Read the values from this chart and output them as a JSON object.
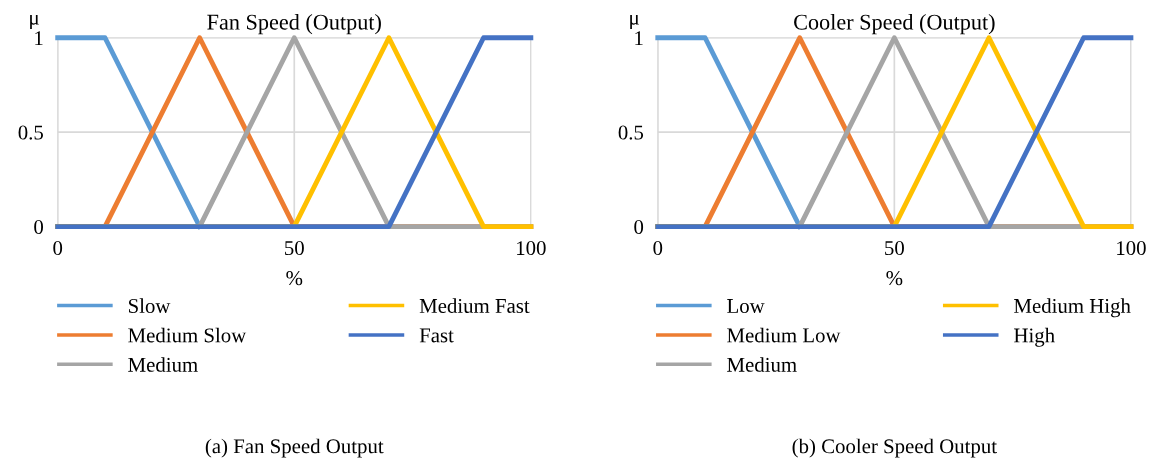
{
  "chart_data": [
    {
      "type": "line",
      "title": "Fan Speed (Output)",
      "xlabel": "%",
      "ylabel": "μ",
      "xlim": [
        0,
        100
      ],
      "xticks": [
        0,
        50,
        100
      ],
      "ylim": [
        0,
        1
      ],
      "yticks": [
        0,
        0.5,
        1
      ],
      "grid": true,
      "legend": "bottom",
      "marker": "none",
      "line_style": "solid",
      "annotations": [
        "(a) Fan Speed Output"
      ],
      "series": [
        {
          "name": "Slow",
          "color": "#5b9bd5",
          "x": [
            0,
            10,
            30
          ],
          "values": [
            1,
            1,
            0
          ]
        },
        {
          "name": "Medium Slow",
          "color": "#ed7d31",
          "x": [
            0,
            10,
            30,
            50,
            100
          ],
          "values": [
            0,
            0,
            1,
            0,
            0
          ]
        },
        {
          "name": "Medium",
          "color": "#a5a5a5",
          "x": [
            0,
            30,
            50,
            70,
            100
          ],
          "values": [
            0,
            0,
            1,
            0,
            0
          ]
        },
        {
          "name": "Medium Fast",
          "color": "#ffc000",
          "x": [
            0,
            50,
            70,
            90,
            100
          ],
          "values": [
            0,
            0,
            1,
            0,
            0
          ]
        },
        {
          "name": "Fast",
          "color": "#4472c4",
          "x": [
            0,
            70,
            90,
            100
          ],
          "values": [
            0,
            0,
            1,
            1
          ]
        }
      ]
    },
    {
      "type": "line",
      "title": "Cooler Speed (Output)",
      "xlabel": "%",
      "ylabel": "μ",
      "xlim": [
        0,
        100
      ],
      "xticks": [
        0,
        50,
        100
      ],
      "ylim": [
        0,
        1
      ],
      "yticks": [
        0,
        0.5,
        1
      ],
      "grid": true,
      "legend": "bottom",
      "marker": "none",
      "line_style": "solid",
      "annotations": [
        "(b) Cooler Speed Output"
      ],
      "series": [
        {
          "name": "Low",
          "color": "#5b9bd5",
          "x": [
            0,
            10,
            30
          ],
          "values": [
            1,
            1,
            0
          ]
        },
        {
          "name": "Medium Low",
          "color": "#ed7d31",
          "x": [
            0,
            10,
            30,
            50,
            100
          ],
          "values": [
            0,
            0,
            1,
            0,
            0
          ]
        },
        {
          "name": "Medium",
          "color": "#a5a5a5",
          "x": [
            0,
            30,
            50,
            70,
            100
          ],
          "values": [
            0,
            0,
            1,
            0,
            0
          ]
        },
        {
          "name": "Medium High",
          "color": "#ffc000",
          "x": [
            0,
            50,
            70,
            90,
            100
          ],
          "values": [
            0,
            0,
            1,
            0,
            0
          ]
        },
        {
          "name": "High",
          "color": "#4472c4",
          "x": [
            0,
            70,
            90,
            100
          ],
          "values": [
            0,
            0,
            1,
            1
          ]
        }
      ]
    }
  ]
}
